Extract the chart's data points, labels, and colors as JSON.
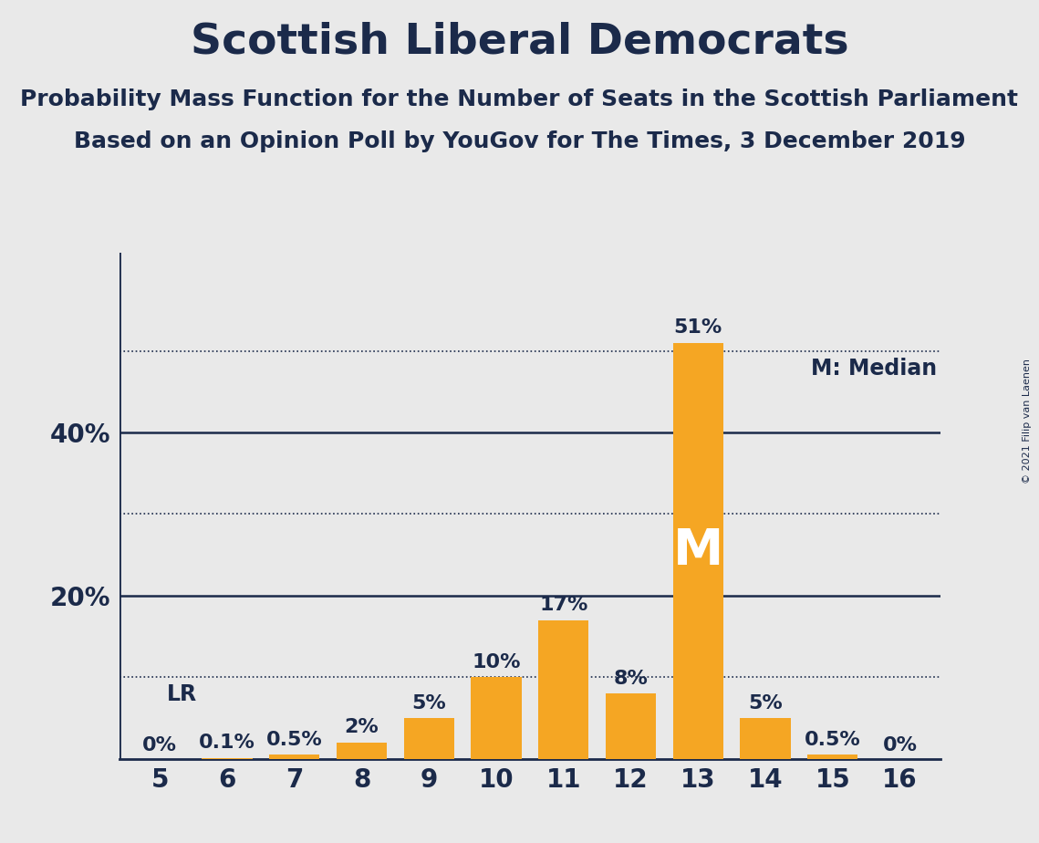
{
  "title": "Scottish Liberal Democrats",
  "subtitle1": "Probability Mass Function for the Number of Seats in the Scottish Parliament",
  "subtitle2": "Based on an Opinion Poll by YouGov for The Times, 3 December 2019",
  "copyright": "© 2021 Filip van Laenen",
  "seats": [
    5,
    6,
    7,
    8,
    9,
    10,
    11,
    12,
    13,
    14,
    15,
    16
  ],
  "values": [
    0.0,
    0.1,
    0.5,
    2.0,
    5.0,
    10.0,
    17.0,
    8.0,
    51.0,
    5.0,
    0.5,
    0.0
  ],
  "bar_color": "#F5A623",
  "median_seat": 13,
  "lr_seat": 5,
  "labels": [
    "0%",
    "0.1%",
    "0.5%",
    "2%",
    "5%",
    "10%",
    "17%",
    "8%",
    "51%",
    "5%",
    "0.5%",
    "0%"
  ],
  "solid_hlines": [
    20,
    40
  ],
  "dotted_hlines": [
    10,
    30,
    50
  ],
  "ylim": [
    0,
    62
  ],
  "xlim_left": 4.4,
  "xlim_right": 16.6,
  "background_color": "#E9E9E9",
  "text_color": "#1B2A4A",
  "bar_width": 0.75,
  "legend_m": "M: Median",
  "title_fontsize": 34,
  "subtitle_fontsize": 18,
  "axis_fontsize": 20,
  "label_fontsize": 16,
  "legend_fontsize": 17,
  "m_fontsize": 40,
  "lr_label_fontsize": 17
}
